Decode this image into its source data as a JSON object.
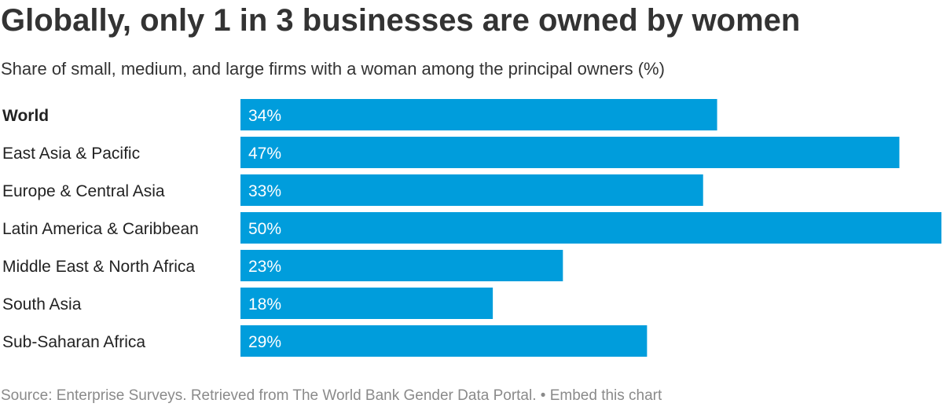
{
  "title": "Globally, only 1 in 3 businesses are owned by women",
  "subtitle": "Share of small, medium, and large firms with a woman among the principal owners (%)",
  "chart_data": {
    "type": "bar",
    "orientation": "horizontal",
    "categories": [
      "World",
      "East Asia & Pacific",
      "Europe & Central Asia",
      "Latin America & Caribbean",
      "Middle East & North Africa",
      "South Asia",
      "Sub-Saharan Africa"
    ],
    "values": [
      34,
      47,
      33,
      50,
      23,
      18,
      29
    ],
    "value_labels": [
      "34%",
      "47%",
      "33%",
      "50%",
      "23%",
      "18%",
      "29%"
    ],
    "bold_categories": [
      "World"
    ],
    "xlim": [
      0,
      50
    ],
    "grid": false,
    "bar_color": "#009ddc",
    "value_label_color": "#ffffff"
  },
  "footer": {
    "source": "Source: Enterprise Surveys. Retrieved from The World Bank Gender Data Portal.",
    "separator": "•",
    "embed_link": "Embed this chart"
  }
}
